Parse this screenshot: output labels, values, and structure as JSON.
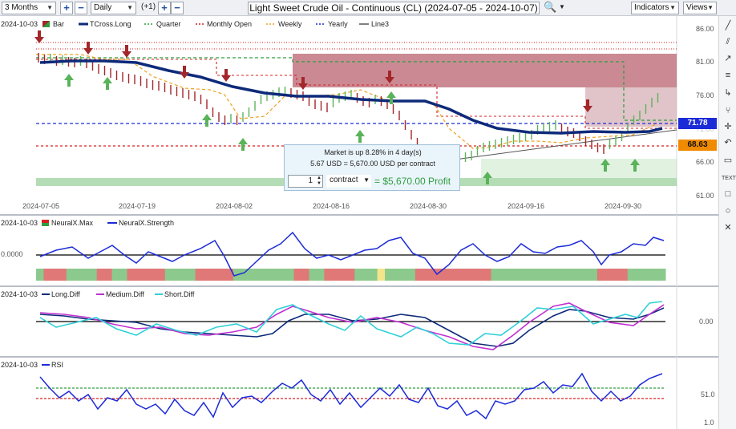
{
  "toolbar": {
    "period": "3 Months",
    "interval": "Daily",
    "offset": "(+1)",
    "title": "Light Sweet Crude Oil - Continuous (CL) (2024-07-05 - 2024-10-07)",
    "indicators_label": "Indicators",
    "views_label": "Views"
  },
  "colors": {
    "bull_arrow": "#5ab35a",
    "bear_arrow": "#a3262a",
    "tcross": "#0d2a7a",
    "quarter": "#2e9e3e",
    "monthly_open": "#d62020",
    "weekly": "#f0a020",
    "yearly": "#1c2bd8",
    "line3": "#555555",
    "profit": "#2e9e3e"
  },
  "main_panel": {
    "date_label": "2024-10-03",
    "legend": [
      "Bar",
      "TCross.Long",
      "Quarter",
      "Monthly Open",
      "Weekly",
      "Yearly",
      "Line3"
    ],
    "y_ticks": [
      "86.00",
      "81.00",
      "76.00",
      "71.00",
      "66.00",
      "61.00"
    ],
    "x_ticks": [
      "2024-07-05",
      "2024-07-19",
      "2024-08-02",
      "2024-08-16",
      "2024-08-30",
      "2024-09-16",
      "2024-09-30"
    ],
    "price_tag_blue": "71.78",
    "price_tag_orange": "68.63"
  },
  "tooltip": {
    "line1": "Market is up 8.28% in 4 day(s)",
    "line2": "5.67 USD = 5,670.00 USD per contract",
    "quantity": "1",
    "unit": "contract",
    "profit": "= $5,670.00 Profit"
  },
  "neural_panel": {
    "date_label": "2024-10-03",
    "legend": [
      "NeuralX.Max",
      "NeuralX.Strength"
    ],
    "y_tick": "0.0000"
  },
  "diff_panel": {
    "date_label": "2024-10-03",
    "legend": [
      "Long.Diff",
      "Medium.Diff",
      "Short.Diff"
    ],
    "y_tick": "0.00"
  },
  "rsi_panel": {
    "date_label": "2024-10-03",
    "legend": [
      "RSI"
    ],
    "y_ticks": [
      "51.0",
      "1.0"
    ]
  }
}
